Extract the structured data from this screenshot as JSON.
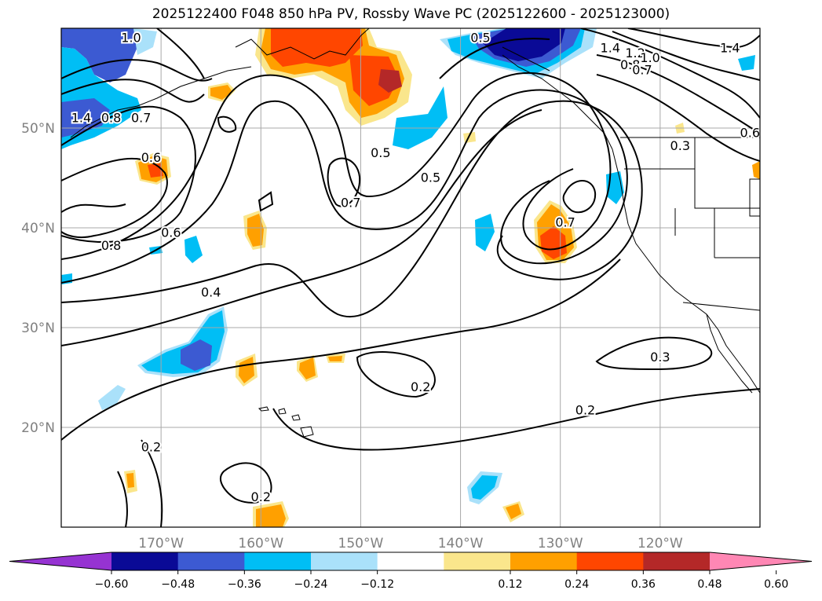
{
  "title": "2025122400 F048 850 hPa PV, Rossby Wave PC (2025122600 - 2025123000)",
  "map": {
    "lon_range": [
      -180,
      -110
    ],
    "lat_range": [
      10,
      60
    ],
    "lon_ticks": [
      {
        "value": -170,
        "label": "170°W"
      },
      {
        "value": -160,
        "label": "160°W"
      },
      {
        "value": -150,
        "label": "150°W"
      },
      {
        "value": -140,
        "label": "140°W"
      },
      {
        "value": -130,
        "label": "130°W"
      },
      {
        "value": -120,
        "label": "120°W"
      }
    ],
    "lat_ticks": [
      {
        "value": 50,
        "label": "50°N"
      },
      {
        "value": 40,
        "label": "40°N"
      },
      {
        "value": 30,
        "label": "30°N"
      },
      {
        "value": 20,
        "label": "20°N"
      }
    ],
    "gridlines": true,
    "contour_labels": [
      {
        "text": "1.0",
        "lon": -173,
        "lat": 59
      },
      {
        "text": "0.5",
        "lon": -138,
        "lat": 59
      },
      {
        "text": "1.4",
        "lon": -178,
        "lat": 51
      },
      {
        "text": "0.8",
        "lon": -175,
        "lat": 51
      },
      {
        "text": "0.7",
        "lon": -172,
        "lat": 51
      },
      {
        "text": "0.6",
        "lon": -171,
        "lat": 47
      },
      {
        "text": "0.5",
        "lon": -148,
        "lat": 47.5
      },
      {
        "text": "0.5",
        "lon": -143,
        "lat": 45
      },
      {
        "text": "0.7",
        "lon": -151,
        "lat": 42.5
      },
      {
        "text": "0.6",
        "lon": -169,
        "lat": 39.5
      },
      {
        "text": "0.8",
        "lon": -175,
        "lat": 38.2
      },
      {
        "text": "0.7",
        "lon": -129.5,
        "lat": 40.5
      },
      {
        "text": "0.4",
        "lon": -165,
        "lat": 33.5
      },
      {
        "text": "0.3",
        "lon": -118,
        "lat": 48.2
      },
      {
        "text": "0.3",
        "lon": -120,
        "lat": 27
      },
      {
        "text": "0.2",
        "lon": -144,
        "lat": 24
      },
      {
        "text": "0.2",
        "lon": -127.5,
        "lat": 21.7
      },
      {
        "text": "0.2",
        "lon": -171,
        "lat": 18
      },
      {
        "text": "0.2",
        "lon": -160,
        "lat": 13
      },
      {
        "text": "1.4",
        "lon": -125,
        "lat": 58
      },
      {
        "text": "1.2",
        "lon": -122.5,
        "lat": 57.5
      },
      {
        "text": "1.0",
        "lon": -121,
        "lat": 57
      },
      {
        "text": "0.8",
        "lon": -123,
        "lat": 56.3
      },
      {
        "text": "0.7",
        "lon": -121.8,
        "lat": 55.8
      },
      {
        "text": "0.6",
        "lon": -111,
        "lat": 49.5
      },
      {
        "text": "1.4",
        "lon": -113,
        "lat": 58
      }
    ]
  },
  "colorbar": {
    "ticks": [
      "−0.60",
      "−0.48",
      "−0.36",
      "−0.24",
      "−0.12",
      "0.12",
      "0.24",
      "0.36",
      "0.48",
      "0.60"
    ],
    "colors": [
      "#9633d2",
      "#0a0a96",
      "#3c5ad2",
      "#00bef5",
      "#aae1fa",
      "#ffffff",
      "#fae68c",
      "#ffa000",
      "#ff4600",
      "#b42828",
      "#ff87b4"
    ]
  }
}
